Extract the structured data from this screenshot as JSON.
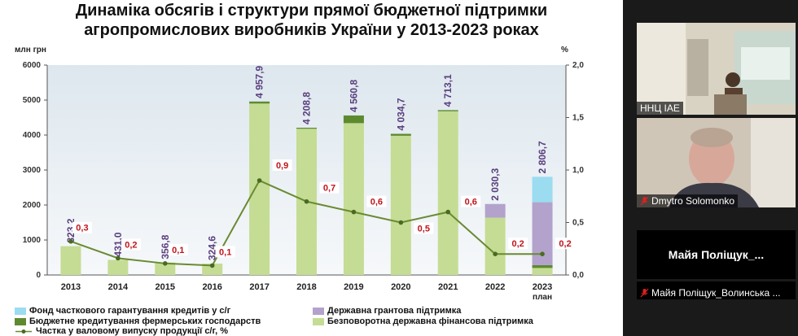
{
  "slide": {
    "title_line1": "Динаміка обсягів і структури прямої бюджетної підтримки",
    "title_line2": "агропромислових виробників України у 2013-2023 роках"
  },
  "chart_data": {
    "type": "bar",
    "stacked": true,
    "ylabel": "млн грн",
    "y2label": "%",
    "ylim": [
      0,
      6000
    ],
    "y2lim": [
      0,
      2.0
    ],
    "yticks": [
      0,
      1000,
      2000,
      3000,
      4000,
      5000,
      6000
    ],
    "y2ticks": [
      "0,0",
      "0,5",
      "1,0",
      "1,5",
      "2,0"
    ],
    "categories": [
      "2013",
      "2014",
      "2015",
      "2016",
      "2017",
      "2018",
      "2019",
      "2020",
      "2021",
      "2022",
      "2023"
    ],
    "category_sublabel": {
      "index": 10,
      "text": "план"
    },
    "totals": [
      "823,2",
      "431,0",
      "356,8",
      "324,6",
      "4 957,9",
      "4 208,8",
      "4 560,8",
      "4 034,7",
      "4 713,1",
      "2 030,3",
      "2 806,7"
    ],
    "series": [
      {
        "name": "Безповоротна державна фінансова підтримка",
        "color": "#c5dc94",
        "values": [
          823,
          431,
          357,
          325,
          4900,
          4180,
          4340,
          3980,
          4680,
          1640,
          200
        ]
      },
      {
        "name": "Бюджетне кредитування фермерських господарств",
        "color": "#5d8a2f",
        "values": [
          0,
          0,
          0,
          0,
          58,
          29,
          220,
          55,
          33,
          0,
          80
        ]
      },
      {
        "name": "Державна грантова підтримка",
        "color": "#b3a2cc",
        "values": [
          0,
          0,
          0,
          0,
          0,
          0,
          0,
          0,
          0,
          390,
          1800
        ]
      },
      {
        "name": "Фонд часткового гарантування кредитів у с/г",
        "color": "#9bdcf0",
        "values": [
          0,
          0,
          0,
          0,
          0,
          0,
          0,
          0,
          0,
          0,
          727
        ]
      }
    ],
    "line": {
      "name": "Частка у валовому випуску продукції с/г, %",
      "color": "#6a8a32",
      "values": [
        0.32,
        0.16,
        0.11,
        0.09,
        0.9,
        0.7,
        0.6,
        0.5,
        0.6,
        0.2,
        0.2
      ],
      "labels": [
        "0,3",
        "0,2",
        "0,1",
        "0,1",
        "0,9",
        "0,7",
        "0,6",
        "0,5",
        "0,6",
        "0,2",
        "0,2"
      ]
    },
    "legend_placement": "bottom",
    "grid": false
  },
  "participants": [
    {
      "label": "ННЦ ІАЕ",
      "muted": false
    },
    {
      "label": "Dmytro Solomonko",
      "muted": true
    },
    {
      "label": "Майя Поліщук_Волинська ...",
      "display_name": "Майя  Поліщук_...",
      "muted": true
    }
  ],
  "colors": {
    "sidebar": "#1a1a1a",
    "mic_muted": "#e02020"
  }
}
